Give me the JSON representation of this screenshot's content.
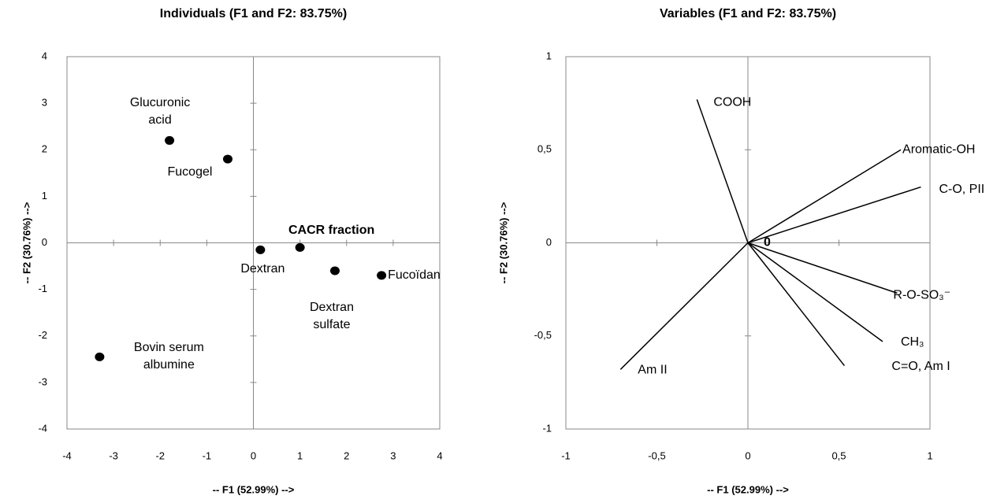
{
  "chart_data": [
    {
      "type": "scatter",
      "title": "Individuals (F1 and F2: 83.75%)",
      "x_label": "-- F1 (52.99%) -->",
      "y_label": "-- F2 (30.76%) -->",
      "labels": [
        "Glucuronic acid",
        "Fucogel",
        "Dextran",
        "CACR fraction",
        "Dextran sulfate",
        "Fucoïdan",
        "Bovin serum albumine"
      ],
      "x": [
        -1.8,
        -0.55,
        0.15,
        1.0,
        1.75,
        2.75,
        -3.3
      ],
      "y": [
        2.2,
        1.8,
        -0.15,
        -0.1,
        -0.6,
        -0.7,
        -2.45
      ],
      "color": "#000000",
      "xlim": [
        -4,
        4
      ],
      "xticks": [
        -4,
        -3,
        -2,
        -1,
        0,
        1,
        2,
        3,
        4
      ],
      "ylim": [
        -4,
        4
      ],
      "yticks": [
        -4,
        -3,
        -2,
        -1,
        0,
        1,
        2,
        3,
        4
      ],
      "grid": false
    },
    {
      "type": "vectors",
      "title": "Variables (F1 and F2: 83.75%)",
      "x_label": "-- F1 (52.99%) -->",
      "y_label": "-- F2 (30.76%) -->",
      "labels": [
        "COOH",
        "Aromatic-OH",
        "C-O, PII",
        "R-O-SO₃⁻",
        "CH₃",
        "C=O, Am I",
        "Am II"
      ],
      "x": [
        -0.28,
        0.84,
        0.95,
        0.82,
        0.74,
        0.53,
        -0.7
      ],
      "y": [
        0.77,
        0.5,
        0.3,
        -0.27,
        -0.53,
        -0.66,
        -0.68
      ],
      "annotation": "0",
      "color": "#000000",
      "xlim": [
        -1,
        1
      ],
      "xticks": [
        -1,
        {
          "value": -0.5,
          "label": "-0,5"
        },
        0,
        {
          "value": 0.5,
          "label": "0,5"
        },
        1
      ],
      "ylim": [
        -1,
        1
      ],
      "yticks": [
        -1,
        {
          "value": -0.5,
          "label": "-0,5"
        },
        0,
        {
          "value": 0.5,
          "label": "0,5"
        },
        1
      ],
      "grid": false
    }
  ]
}
